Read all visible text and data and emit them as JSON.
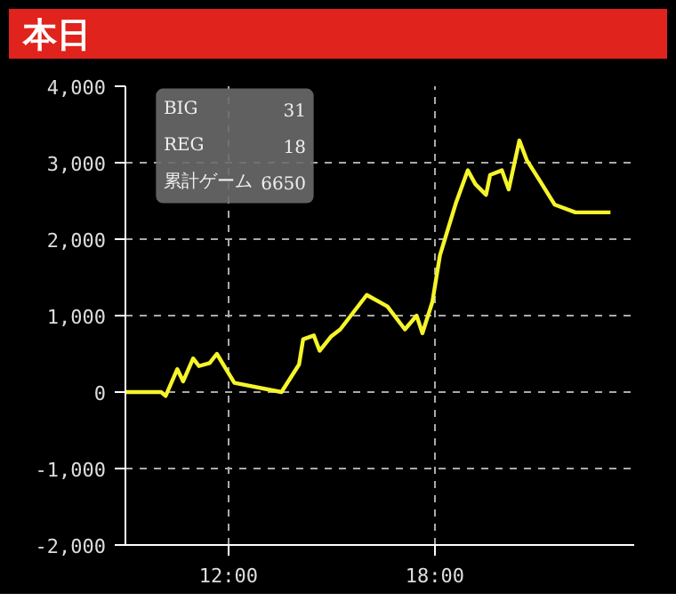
{
  "chart_data": {
    "type": "line",
    "title": "本日",
    "x": [
      9.0,
      10.04,
      10.17,
      10.51,
      10.68,
      10.97,
      11.14,
      11.45,
      11.66,
      12.17,
      13.54,
      14.05,
      14.17,
      14.48,
      14.65,
      14.99,
      15.25,
      16.02,
      16.62,
      17.13,
      17.47,
      17.64,
      17.93,
      18.15,
      18.62,
      18.96,
      19.18,
      19.49,
      19.61,
      19.95,
      20.15,
      20.46,
      20.68,
      21.06,
      21.49,
      22.09,
      23.11
    ],
    "series": [
      {
        "color": "#f5f52a",
        "values": [
          0,
          0,
          -50,
          300,
          140,
          440,
          340,
          380,
          500,
          120,
          0,
          360,
          690,
          740,
          540,
          730,
          820,
          1270,
          1120,
          820,
          1000,
          770,
          1180,
          1790,
          2480,
          2900,
          2720,
          2580,
          2840,
          2900,
          2650,
          3290,
          3030,
          2760,
          2450,
          2350,
          2350
        ]
      }
    ],
    "xlim": [
      9.0,
      23.8
    ],
    "xticks": [
      {
        "value": 12,
        "label": "12:00"
      },
      {
        "value": 18,
        "label": "18:00"
      }
    ],
    "ylim": [
      -2000,
      4000
    ],
    "yticks": [
      {
        "value": -2000,
        "label": "-2,000"
      },
      {
        "value": -1000,
        "label": "-1,000"
      },
      0,
      {
        "value": 1000,
        "label": "1,000"
      },
      {
        "value": 2000,
        "label": "2,000"
      },
      {
        "value": 3000,
        "label": "3,000"
      },
      {
        "value": 4000,
        "label": "4,000"
      }
    ],
    "grid": true,
    "marker": "none",
    "line_style": "solid",
    "annotations": [
      "BIG 31",
      "REG 18",
      "累計ゲーム 6650"
    ]
  }
}
